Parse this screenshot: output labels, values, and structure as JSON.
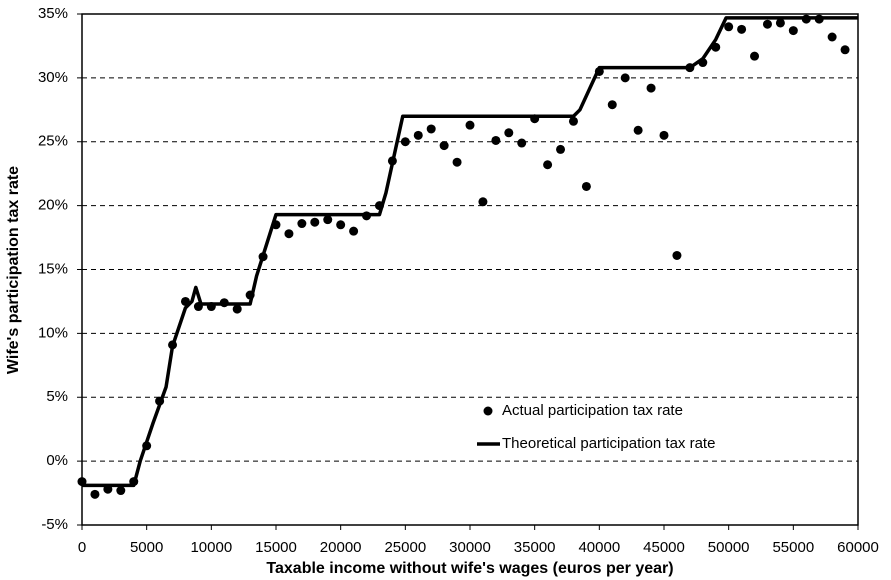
{
  "chart_data": {
    "type": "scatter",
    "x_label": "Taxable income without wife's wages (euros per year)",
    "y_label": "Wife's participation tax rate",
    "xlim": [
      0,
      60000
    ],
    "xticks": [
      0,
      5000,
      10000,
      15000,
      20000,
      25000,
      30000,
      35000,
      40000,
      45000,
      50000,
      55000,
      60000
    ],
    "ylim": [
      -5,
      35
    ],
    "yticks": [
      {
        "value": -5,
        "label": "-5%"
      },
      {
        "value": 0,
        "label": "0%"
      },
      {
        "value": 5,
        "label": "5%"
      },
      {
        "value": 10,
        "label": "10%"
      },
      {
        "value": 15,
        "label": "15%"
      },
      {
        "value": 20,
        "label": "20%"
      },
      {
        "value": 25,
        "label": "25%"
      },
      {
        "value": 30,
        "label": "30%"
      },
      {
        "value": 35,
        "label": "35%"
      }
    ],
    "grid": true,
    "legend": "lower right",
    "series": [
      {
        "name": "Actual participation tax rate",
        "type": "scatter",
        "color": "#000000",
        "x": [
          0,
          1000,
          2000,
          3000,
          4000,
          5000,
          6000,
          7000,
          8000,
          9000,
          10000,
          11000,
          12000,
          13000,
          14000,
          15000,
          16000,
          17000,
          18000,
          19000,
          20000,
          21000,
          22000,
          23000,
          24000,
          25000,
          26000,
          27000,
          28000,
          29000,
          30000,
          31000,
          32000,
          33000,
          34000,
          35000,
          36000,
          37000,
          38000,
          39000,
          40000,
          41000,
          42000,
          43000,
          44000,
          45000,
          46000,
          47000,
          48000,
          49000,
          50000,
          51000,
          52000,
          53000,
          54000,
          55000,
          56000,
          57000,
          58000,
          59000
        ],
        "values": [
          -1.6,
          -2.6,
          -2.2,
          -2.3,
          -1.6,
          1.2,
          4.7,
          9.1,
          12.5,
          12.1,
          12.1,
          12.4,
          11.9,
          13.0,
          16.0,
          18.5,
          17.8,
          18.6,
          18.7,
          18.9,
          18.5,
          18.0,
          19.2,
          20.0,
          23.5,
          25.0,
          25.5,
          26.0,
          24.7,
          23.4,
          26.3,
          20.3,
          25.1,
          25.7,
          24.9,
          26.8,
          23.2,
          24.4,
          26.6,
          21.5,
          30.5,
          27.9,
          30.0,
          25.9,
          29.2,
          25.5,
          16.1,
          30.8,
          31.2,
          32.4,
          34.0,
          33.8,
          31.7,
          34.2,
          34.3,
          33.7,
          34.6,
          34.6,
          33.2,
          32.2
        ]
      },
      {
        "name": "Theoretical participation tax rate",
        "type": "line",
        "color": "#000000",
        "x": [
          0,
          4000,
          4500,
          5500,
          6500,
          7000,
          8000,
          8500,
          8800,
          9200,
          13000,
          13500,
          15000,
          23000,
          23500,
          24800,
          38000,
          38500,
          40000,
          47000,
          48000,
          49000,
          49800,
          60000
        ],
        "values": [
          -1.9,
          -1.9,
          0,
          3,
          5.8,
          9,
          12,
          12.5,
          13.6,
          12.3,
          12.3,
          14.5,
          19.3,
          19.3,
          21,
          27,
          27,
          27.5,
          30.8,
          30.8,
          31.5,
          33,
          34.7,
          34.7
        ]
      }
    ]
  }
}
